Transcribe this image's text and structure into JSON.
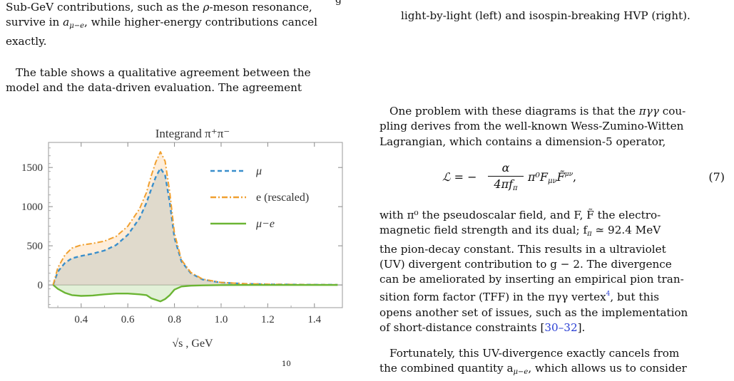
{
  "left_column": {
    "para1_line1": "Sub-GeV contributions, such as the",
    "para1_line1_sym": "ρ",
    "para1_line1_end": "-meson resonance,",
    "para1_line2_start": "survive in",
    "para1_line2_sym": "a",
    "para1_line2_sub": "μ−e",
    "para1_line2_end": ", while higher-energy contributions cancel",
    "para1_line3": "exactly.",
    "para2_line1": "The table shows a qualitative agreement between the",
    "para2_line2": "model and the data-driven evaluation.  The agreement",
    "caption_fragment": "10",
    "top_cut_fragment": "g"
  },
  "right_column": {
    "caption_line": "light-by-light (left) and isospin-breaking HVP (right).",
    "para1": {
      "l1a": "One problem with these diagrams is that the",
      "l1b": "πγγ",
      "l1c": "cou-",
      "l2": "pling derives from the well-known Wess-Zumino-Witten",
      "l3": "Lagrangian, which contains a dimension-5 operator,"
    },
    "equation": {
      "lhs": "ℒ = −",
      "num": "α",
      "den": "4πf",
      "den_sub": "π",
      "rhs": "π⁰F",
      "rhs_sub": "μν",
      "ftilde": "F̃",
      "ftilde_sup": "μν",
      "end": ",",
      "number": "(7)"
    },
    "para2": {
      "l1": "with π⁰ the pseudoscalar field, and F, F̃ the electro-",
      "l2": "magnetic field strength and its dual; f",
      "l2_sub": "π",
      "l2_end": " ≃ 92.4 MeV",
      "l3": "the pion-decay constant.  This results in a ultraviolet",
      "l4": "(UV) divergent contribution to g − 2.  The divergence",
      "l5": "can be ameliorated by inserting an empirical pion tran-",
      "l6": "sition form factor (TFF) in the πγγ vertex",
      "l6_sup": "4",
      "l6_end": ", but this",
      "l7": "opens another set of issues, such as the implementation",
      "l8a": "of short-distance constraints [",
      "l8_ref": "30–32",
      "l8b": "]."
    },
    "para3": {
      "l1": "Fortunately, this UV-divergence exactly cancels from",
      "l2a": "the combined quantity a",
      "l2_sub": "μ−e",
      "l2b": ", which allows us to consider"
    }
  },
  "colors": {
    "mu": "#3a8fcc",
    "e": "#f0a030",
    "mu_minus_e": "#6bb534",
    "link": "#2a3fd4"
  },
  "chart_data": {
    "type": "line",
    "title": "Integrand π⁺π⁻",
    "xlabel": "√s , GeV",
    "ylabel": "",
    "xlim": [
      0.26,
      1.52
    ],
    "ylim": [
      -290,
      1820
    ],
    "xticks": [
      "0.4",
      "0.6",
      "0.8",
      "1.0",
      "1.2",
      "1.4"
    ],
    "yticks": [
      "0",
      "500",
      "1000",
      "1500"
    ],
    "legend_position": "top-right",
    "series": [
      {
        "name": "μ",
        "style": "dashed",
        "x": [
          0.28,
          0.3,
          0.33,
          0.36,
          0.4,
          0.45,
          0.5,
          0.55,
          0.6,
          0.65,
          0.68,
          0.7,
          0.72,
          0.74,
          0.76,
          0.78,
          0.8,
          0.83,
          0.87,
          0.92,
          1.0,
          1.1,
          1.2,
          1.35,
          1.5
        ],
        "y": [
          0,
          170,
          280,
          340,
          370,
          400,
          440,
          510,
          640,
          850,
          1050,
          1220,
          1380,
          1490,
          1400,
          1050,
          600,
          300,
          150,
          70,
          30,
          15,
          8,
          4,
          2
        ]
      },
      {
        "name": "e (rescaled)",
        "style": "dashdot",
        "x": [
          0.28,
          0.3,
          0.33,
          0.36,
          0.4,
          0.45,
          0.5,
          0.55,
          0.6,
          0.65,
          0.68,
          0.7,
          0.72,
          0.74,
          0.76,
          0.78,
          0.8,
          0.83,
          0.87,
          0.92,
          1.0,
          1.1,
          1.2,
          1.35,
          1.5
        ],
        "y": [
          0,
          220,
          380,
          470,
          510,
          530,
          560,
          620,
          750,
          970,
          1180,
          1390,
          1570,
          1700,
          1580,
          1180,
          660,
          320,
          160,
          75,
          32,
          16,
          9,
          4,
          2
        ]
      },
      {
        "name": "μ−e",
        "style": "solid",
        "x": [
          0.28,
          0.3,
          0.33,
          0.36,
          0.4,
          0.45,
          0.5,
          0.55,
          0.6,
          0.65,
          0.68,
          0.7,
          0.72,
          0.74,
          0.76,
          0.78,
          0.8,
          0.83,
          0.87,
          0.92,
          1.0,
          1.1,
          1.2,
          1.35,
          1.5
        ],
        "y": [
          0,
          -50,
          -100,
          -130,
          -140,
          -135,
          -120,
          -110,
          -110,
          -120,
          -130,
          -170,
          -190,
          -210,
          -180,
          -130,
          -60,
          -20,
          -10,
          -5,
          -2,
          -1,
          -1,
          0,
          0
        ]
      }
    ]
  }
}
